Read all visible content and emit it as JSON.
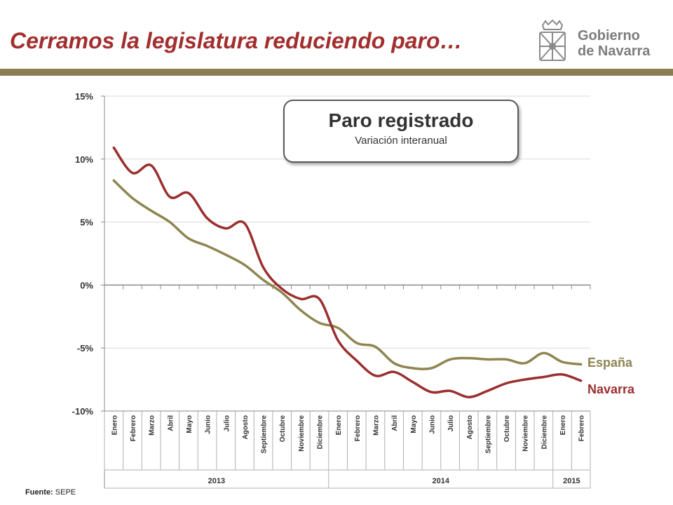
{
  "header": {
    "title": "Cerramos la legislatura reduciendo paro…",
    "logo_line1": "Gobierno",
    "logo_line2": "de Navarra"
  },
  "callout": {
    "title": "Paro registrado",
    "subtitle": "Variación interanual"
  },
  "source": {
    "label": "Fuente:",
    "value": "SEPE"
  },
  "colors": {
    "espana": "#8f8550",
    "navarra": "#9b2f2f",
    "title": "#a32e2e",
    "divider": "#8b7d54"
  },
  "chart_data": {
    "type": "line",
    "ylim": [
      -10,
      15
    ],
    "yticks": [
      15,
      10,
      5,
      0,
      -5,
      -10
    ],
    "ytick_labels": [
      "15%",
      "10%",
      "5%",
      "0%",
      "-5%",
      "-10%"
    ],
    "grid": true,
    "categories": [
      "Enero",
      "Febrero",
      "Marzo",
      "Abril",
      "Mayo",
      "Junio",
      "Julio",
      "Agosto",
      "Septiembre",
      "Octubre",
      "Noviembre",
      "Diciembre",
      "Enero",
      "Febrero",
      "Marzo",
      "Abril",
      "Mayo",
      "Junio",
      "Julio",
      "Agosto",
      "Septiembre",
      "Octubre",
      "Noviembre",
      "Diciembre",
      "Enero",
      "Febrero"
    ],
    "years": [
      {
        "label": "2013",
        "start": 0,
        "end": 11
      },
      {
        "label": "2014",
        "start": 12,
        "end": 23
      },
      {
        "label": "2015",
        "start": 24,
        "end": 25
      }
    ],
    "series": [
      {
        "name": "España",
        "color": "#8f8550",
        "values": [
          8.3,
          6.9,
          5.9,
          5.0,
          3.7,
          3.1,
          2.4,
          1.6,
          0.4,
          -0.6,
          -2.0,
          -3.0,
          -3.4,
          -4.6,
          -4.9,
          -6.2,
          -6.6,
          -6.6,
          -5.9,
          -5.8,
          -5.9,
          -5.9,
          -6.2,
          -5.4,
          -6.1,
          -6.3
        ]
      },
      {
        "name": "Navarra",
        "color": "#9b2f2f",
        "values": [
          10.9,
          8.9,
          9.5,
          7.0,
          7.3,
          5.3,
          4.5,
          4.9,
          1.4,
          -0.3,
          -1.1,
          -1.1,
          -4.4,
          -6.0,
          -7.2,
          -6.9,
          -7.7,
          -8.5,
          -8.4,
          -8.9,
          -8.4,
          -7.8,
          -7.5,
          -7.3,
          -7.1,
          -7.6
        ]
      }
    ]
  }
}
